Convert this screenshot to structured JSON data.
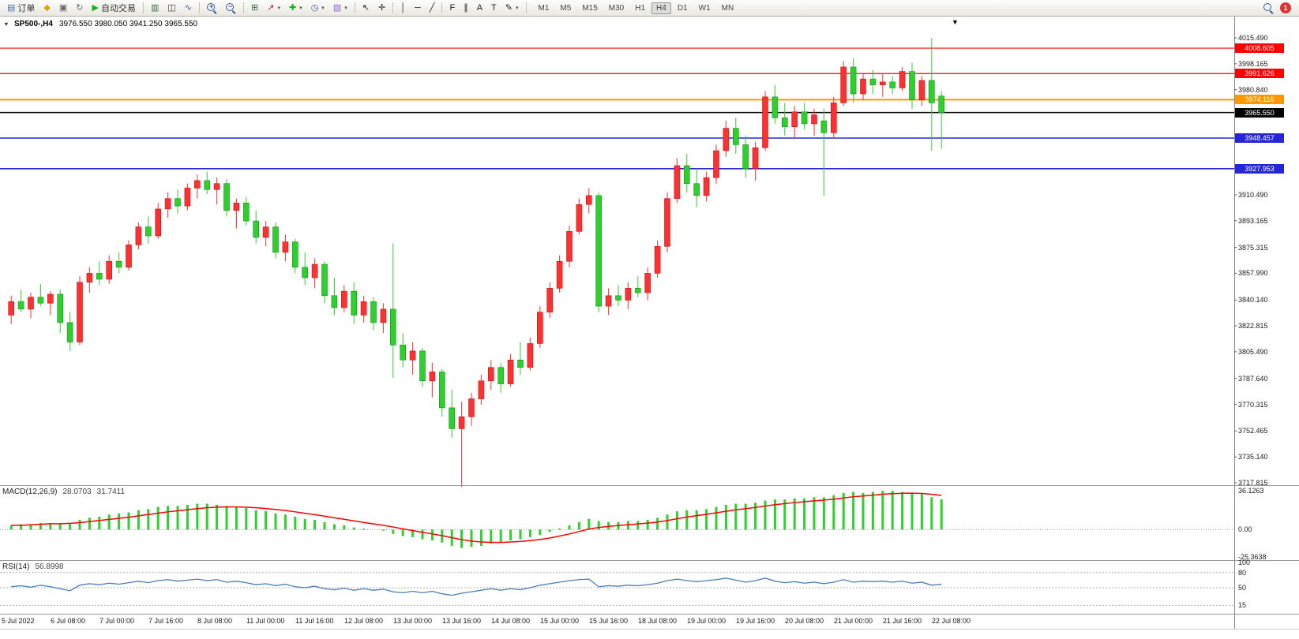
{
  "toolbar": {
    "order_label": "订单",
    "auto_trading_label": "自动交易",
    "notification_count": "1",
    "timeframes": [
      "M1",
      "M5",
      "M15",
      "M30",
      "H1",
      "H4",
      "D1",
      "W1",
      "MN"
    ],
    "active_timeframe": "H4",
    "items": [
      {
        "type": "button",
        "name": "new-order-button",
        "glyph": "doc",
        "color": "#4a6ea9",
        "label": "订单"
      },
      {
        "type": "icon",
        "name": "sound-alert-icon",
        "glyph": "horn",
        "color": "#d9a21b"
      },
      {
        "type": "icon",
        "name": "print-icon",
        "glyph": "print",
        "color": "#666666"
      },
      {
        "type": "icon",
        "name": "refresh-icon",
        "glyph": "refresh",
        "color": "#666666"
      },
      {
        "type": "button",
        "name": "auto-trading-button",
        "glyph": "play",
        "color": "#1db11d",
        "label": "自动交易"
      },
      {
        "type": "sep"
      },
      {
        "type": "icon",
        "name": "bar-chart-icon",
        "glyph": "bars",
        "color": "#3a6e3a"
      },
      {
        "type": "icon",
        "name": "candlestick-chart-icon",
        "glyph": "candles",
        "color": "#333333"
      },
      {
        "type": "icon",
        "name": "line-chart-icon",
        "glyph": "line",
        "color": "#3a5a9a"
      },
      {
        "type": "sep"
      },
      {
        "type": "icon",
        "name": "zoom-in-icon",
        "glyph": "zoomin"
      },
      {
        "type": "icon",
        "name": "zoom-out-icon",
        "glyph": "zoomout"
      },
      {
        "type": "sep"
      },
      {
        "type": "icon",
        "name": "tile-windows-icon",
        "glyph": "grid",
        "color": "#3a6e3a"
      },
      {
        "type": "icon",
        "name": "indicators-icon",
        "glyph": "indicator",
        "color": "#b02020",
        "dd": true
      },
      {
        "type": "icon",
        "name": "add-indicator-button",
        "glyph": "plus",
        "color": "#1db11d",
        "dd": true
      },
      {
        "type": "icon",
        "name": "periods-button",
        "glyph": "clock",
        "color": "#3a5a9a",
        "dd": true
      },
      {
        "type": "icon",
        "name": "templates-button",
        "glyph": "template",
        "color": "#8a6ad0",
        "dd": true
      },
      {
        "type": "sep"
      },
      {
        "type": "icon",
        "name": "cursor-tool-icon",
        "glyph": "cursor",
        "color": "#222222"
      },
      {
        "type": "icon",
        "name": "crosshair-tool-icon",
        "glyph": "cross",
        "color": "#222222"
      },
      {
        "type": "sep"
      },
      {
        "type": "icon",
        "name": "vertical-line-tool-icon",
        "glyph": "vline",
        "color": "#222222"
      },
      {
        "type": "icon",
        "name": "horizontal-line-tool-icon",
        "glyph": "hline",
        "color": "#222222"
      },
      {
        "type": "icon",
        "name": "trendline-tool-icon",
        "glyph": "tline",
        "color": "#222222"
      },
      {
        "type": "sep"
      },
      {
        "type": "icon",
        "name": "fibonacci-tool-icon",
        "glyph": "fibo",
        "color": "#222222"
      },
      {
        "type": "icon",
        "name": "channel-tool-icon",
        "glyph": "channel",
        "color": "#222222"
      },
      {
        "type": "icon",
        "name": "text-tool-icon",
        "glyph": "A",
        "color": "#222222"
      },
      {
        "type": "icon",
        "name": "arrow-tool-icon",
        "glyph": "T",
        "color": "#222222"
      },
      {
        "type": "icon",
        "name": "shapes-tool-icon",
        "glyph": "pencil",
        "color": "#222222",
        "dd": true
      },
      {
        "type": "sep"
      }
    ]
  },
  "chart_data": {
    "type": "candlestick",
    "title": "SP500-,H4",
    "symbol": "SP500-",
    "timeframe": "H4",
    "ohlc_text": "3976.550 3980.050 3941.250 3965.550",
    "current_ohlc": {
      "open": 3976.55,
      "high": 3980.05,
      "low": 3941.25,
      "close": 3965.55
    },
    "colors": {
      "up": "#fd3131",
      "up_border": "#c41414",
      "down": "#2fcf2f",
      "down_border": "#149414"
    },
    "price_axis_labels": [
      "4015.490",
      "3998.165",
      "3980.840",
      "3910.490",
      "3893.165",
      "3875.315",
      "3857.990",
      "3840.140",
      "3822.815",
      "3805.490",
      "3787.640",
      "3770.315",
      "3752.465",
      "3735.140",
      "3717.815"
    ],
    "hlines": [
      {
        "value": 4008.605,
        "label": "4008.605",
        "color": "#ff0000",
        "width": 1.2
      },
      {
        "value": 3991.626,
        "label": "3991.626",
        "color": "#ff0000",
        "width": 1.2
      },
      {
        "value": 3974.116,
        "label": "3974.116",
        "color": "#ff9800",
        "width": 2
      },
      {
        "value": 3965.55,
        "label": "3965.550",
        "color": "#000000",
        "width": 1.4
      },
      {
        "value": 3948.457,
        "label": "3948.457",
        "color": "#2626d8",
        "width": 1.6
      },
      {
        "value": 3927.953,
        "label": "3927.953",
        "color": "#2626d8",
        "width": 1.6
      }
    ],
    "time_axis_labels": [
      "5 Jul 2022",
      "6 Jul 08:00",
      "7 Jul 00:00",
      "7 Jul 16:00",
      "8 Jul 08:00",
      "11 Jul 00:00",
      "11 Jul 16:00",
      "12 Jul 08:00",
      "13 Jul 00:00",
      "13 Jul 16:00",
      "14 Jul 08:00",
      "15 Jul 00:00",
      "15 Jul 16:00",
      "18 Jul 08:00",
      "19 Jul 00:00",
      "19 Jul 16:00",
      "20 Jul 08:00",
      "21 Jul 00:00",
      "21 Jul 16:00",
      "22 Jul 08:00"
    ],
    "candles": [
      [
        3830,
        3843,
        3824,
        3839
      ],
      [
        3839,
        3847,
        3832,
        3834
      ],
      [
        3834,
        3845,
        3828,
        3842
      ],
      [
        3842,
        3851,
        3836,
        3838
      ],
      [
        3838,
        3846,
        3830,
        3844
      ],
      [
        3844,
        3847,
        3818,
        3825
      ],
      [
        3825,
        3832,
        3806,
        3812
      ],
      [
        3812,
        3856,
        3810,
        3852
      ],
      [
        3852,
        3862,
        3845,
        3858
      ],
      [
        3858,
        3866,
        3850,
        3854
      ],
      [
        3854,
        3870,
        3851,
        3866
      ],
      [
        3866,
        3872,
        3858,
        3862
      ],
      [
        3862,
        3880,
        3860,
        3877
      ],
      [
        3877,
        3892,
        3874,
        3889
      ],
      [
        3889,
        3896,
        3878,
        3883
      ],
      [
        3883,
        3905,
        3881,
        3901
      ],
      [
        3901,
        3912,
        3895,
        3908
      ],
      [
        3908,
        3914,
        3898,
        3903
      ],
      [
        3903,
        3918,
        3900,
        3915
      ],
      [
        3915,
        3924,
        3908,
        3920
      ],
      [
        3920,
        3926,
        3911,
        3914
      ],
      [
        3914,
        3922,
        3904,
        3918
      ],
      [
        3918,
        3921,
        3896,
        3900
      ],
      [
        3900,
        3908,
        3888,
        3905
      ],
      [
        3905,
        3909,
        3890,
        3893
      ],
      [
        3893,
        3900,
        3878,
        3882
      ],
      [
        3882,
        3893,
        3876,
        3889
      ],
      [
        3889,
        3892,
        3868,
        3872
      ],
      [
        3872,
        3884,
        3866,
        3879
      ],
      [
        3879,
        3881,
        3858,
        3862
      ],
      [
        3862,
        3872,
        3850,
        3855
      ],
      [
        3855,
        3868,
        3848,
        3864
      ],
      [
        3864,
        3866,
        3838,
        3843
      ],
      [
        3843,
        3855,
        3830,
        3835
      ],
      [
        3835,
        3850,
        3832,
        3846
      ],
      [
        3846,
        3852,
        3824,
        3830
      ],
      [
        3830,
        3843,
        3825,
        3839
      ],
      [
        3839,
        3842,
        3820,
        3825
      ],
      [
        3825,
        3838,
        3818,
        3834
      ],
      [
        3834,
        3878,
        3788,
        3810
      ],
      [
        3810,
        3818,
        3795,
        3800
      ],
      [
        3800,
        3812,
        3790,
        3806
      ],
      [
        3806,
        3808,
        3782,
        3786
      ],
      [
        3786,
        3798,
        3775,
        3792
      ],
      [
        3792,
        3794,
        3762,
        3768
      ],
      [
        3768,
        3780,
        3748,
        3754
      ],
      [
        3754,
        3772,
        3715,
        3762
      ],
      [
        3762,
        3778,
        3756,
        3774
      ],
      [
        3774,
        3790,
        3770,
        3786
      ],
      [
        3786,
        3800,
        3780,
        3795
      ],
      [
        3795,
        3798,
        3778,
        3784
      ],
      [
        3784,
        3804,
        3782,
        3800
      ],
      [
        3800,
        3812,
        3790,
        3795
      ],
      [
        3795,
        3815,
        3793,
        3811
      ],
      [
        3811,
        3836,
        3808,
        3832
      ],
      [
        3832,
        3852,
        3828,
        3848
      ],
      [
        3848,
        3870,
        3845,
        3866
      ],
      [
        3866,
        3890,
        3862,
        3886
      ],
      [
        3886,
        3908,
        3884,
        3904
      ],
      [
        3904,
        3915,
        3898,
        3910
      ],
      [
        3910,
        3912,
        3832,
        3836
      ],
      [
        3836,
        3848,
        3830,
        3843
      ],
      [
        3843,
        3850,
        3836,
        3840
      ],
      [
        3840,
        3852,
        3834,
        3848
      ],
      [
        3848,
        3856,
        3842,
        3845
      ],
      [
        3845,
        3862,
        3840,
        3858
      ],
      [
        3858,
        3880,
        3855,
        3876
      ],
      [
        3876,
        3912,
        3872,
        3908
      ],
      [
        3908,
        3935,
        3905,
        3930
      ],
      [
        3930,
        3938,
        3912,
        3918
      ],
      [
        3918,
        3928,
        3902,
        3910
      ],
      [
        3910,
        3926,
        3906,
        3922
      ],
      [
        3922,
        3944,
        3918,
        3940
      ],
      [
        3940,
        3960,
        3936,
        3955
      ],
      [
        3955,
        3962,
        3938,
        3944
      ],
      [
        3944,
        3950,
        3922,
        3928
      ],
      [
        3928,
        3946,
        3920,
        3942
      ],
      [
        3942,
        3980,
        3940,
        3976
      ],
      [
        3976,
        3984,
        3958,
        3962
      ],
      [
        3962,
        3972,
        3950,
        3956
      ],
      [
        3956,
        3970,
        3948,
        3966
      ],
      [
        3966,
        3972,
        3954,
        3958
      ],
      [
        3958,
        3968,
        3950,
        3964
      ],
      [
        3960,
        3968,
        3910,
        3952
      ],
      [
        3952,
        3976,
        3948,
        3972
      ],
      [
        3972,
        4000,
        3970,
        3996
      ],
      [
        3996,
        4002,
        3972,
        3978
      ],
      [
        3978,
        3992,
        3974,
        3988
      ],
      [
        3988,
        3994,
        3978,
        3984
      ],
      [
        3984,
        3992,
        3976,
        3986
      ],
      [
        3986,
        3990,
        3978,
        3982
      ],
      [
        3982,
        3996,
        3980,
        3993
      ],
      [
        3993,
        3999,
        3968,
        3974
      ],
      [
        3974,
        3990,
        3970,
        3987
      ],
      [
        3987,
        4015.49,
        3940,
        3972
      ],
      [
        3976.55,
        3980.05,
        3941.25,
        3965.55
      ]
    ],
    "macd": {
      "label": "MACD(12,26,9)",
      "value_main": "28.0703",
      "value_signal": "31.7411",
      "axis_labels": [
        "36.1263",
        "0.00",
        "-25.3638"
      ],
      "colors": {
        "histogram": "#2fcf2f",
        "signal": "#ff0000"
      },
      "histogram": [
        4,
        5,
        5,
        6,
        6,
        5,
        6,
        9,
        11,
        12,
        14,
        15,
        16,
        18,
        19,
        21,
        22,
        22,
        23,
        24,
        24,
        23,
        22,
        21,
        20,
        18,
        17,
        15,
        14,
        12,
        10,
        9,
        7,
        5,
        4,
        2,
        1,
        0,
        -1,
        -4,
        -6,
        -7,
        -9,
        -10,
        -12,
        -15,
        -17,
        -16,
        -15,
        -13,
        -12,
        -10,
        -9,
        -7,
        -5,
        -2,
        1,
        4,
        7,
        10,
        8,
        7,
        7,
        8,
        8,
        9,
        11,
        14,
        17,
        18,
        18,
        19,
        21,
        23,
        24,
        24,
        25,
        27,
        28,
        28,
        29,
        29,
        30,
        30,
        32,
        34,
        35,
        34,
        35,
        36,
        36,
        35,
        34,
        33,
        30,
        28.07
      ],
      "signal": [
        4,
        4,
        4.5,
        5,
        5.5,
        5.5,
        5.8,
        6.5,
        7.5,
        8.5,
        9.5,
        10.5,
        11.5,
        12.8,
        14,
        15.3,
        16.5,
        17.5,
        18.5,
        19.5,
        20.3,
        20.8,
        21,
        21,
        20.8,
        20.3,
        19.6,
        18.7,
        17.7,
        16.5,
        15.2,
        13.9,
        12.5,
        11,
        9.6,
        8.1,
        6.7,
        5.3,
        4,
        2.4,
        0.7,
        -0.9,
        -2.5,
        -4,
        -5.6,
        -7.4,
        -9.3,
        -10.6,
        -11.5,
        -11.8,
        -11.9,
        -11.5,
        -11,
        -10.2,
        -9.2,
        -7.8,
        -6,
        -4,
        -1.8,
        0.5,
        2,
        3,
        3.8,
        4.6,
        5.3,
        6,
        7,
        8.4,
        10.1,
        11.7,
        13,
        14.2,
        15.6,
        17,
        18.4,
        19.5,
        20.6,
        21.9,
        23.1,
        24.1,
        25.1,
        25.9,
        26.7,
        27.4,
        28.3,
        29.4,
        30.5,
        31.2,
        32,
        32.8,
        33.4,
        33.7,
        33.8,
        33.6,
        32.8,
        31.74
      ]
    },
    "rsi": {
      "label": "RSI(14)",
      "value": "56.8998",
      "axis_labels": [
        "100",
        "80",
        "50",
        "15"
      ],
      "levels": [
        80,
        50,
        15
      ],
      "color": "#4a7ebb",
      "values": [
        52,
        54,
        51,
        55,
        52,
        48,
        44,
        55,
        58,
        56,
        59,
        57,
        60,
        63,
        60,
        64,
        66,
        63,
        65,
        67,
        64,
        66,
        61,
        63,
        60,
        56,
        58,
        54,
        57,
        52,
        50,
        53,
        48,
        46,
        49,
        45,
        48,
        45,
        47,
        42,
        40,
        43,
        40,
        43,
        38,
        35,
        39,
        42,
        45,
        48,
        45,
        48,
        46,
        50,
        55,
        58,
        61,
        64,
        66,
        67,
        52,
        54,
        53,
        55,
        54,
        56,
        59,
        64,
        67,
        64,
        62,
        64,
        66,
        69,
        65,
        61,
        64,
        69,
        63,
        60,
        62,
        59,
        61,
        58,
        61,
        66,
        61,
        63,
        62,
        63,
        61,
        63,
        59,
        61,
        55,
        56.9
      ]
    }
  }
}
